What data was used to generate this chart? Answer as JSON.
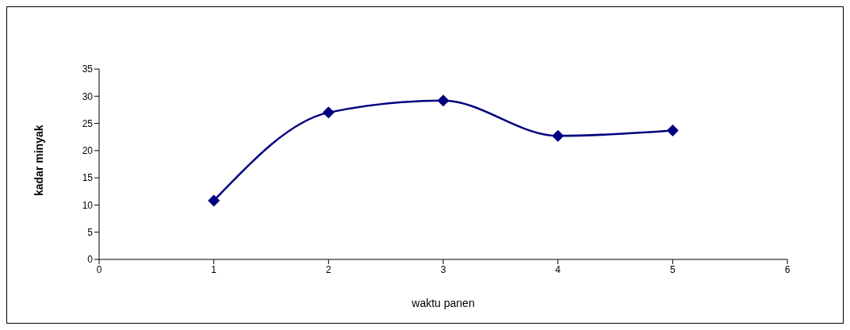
{
  "chart_data": {
    "type": "line",
    "xlabel": "waktu panen",
    "ylabel": "kadar minyak",
    "x": [
      1,
      2,
      3,
      4,
      5
    ],
    "series": [
      {
        "color": "#000080",
        "values": [
          10.8,
          27.0,
          29.2,
          22.7,
          23.7
        ]
      }
    ],
    "xlim": [
      0,
      6
    ],
    "xticks": [
      0,
      1,
      2,
      3,
      4,
      5,
      6
    ],
    "ylim": [
      0,
      35
    ],
    "yticks": [
      0,
      5,
      10,
      15,
      20,
      25,
      30,
      35
    ],
    "grid": false,
    "legend": false,
    "marker": "diamond",
    "line_style": "solid"
  }
}
